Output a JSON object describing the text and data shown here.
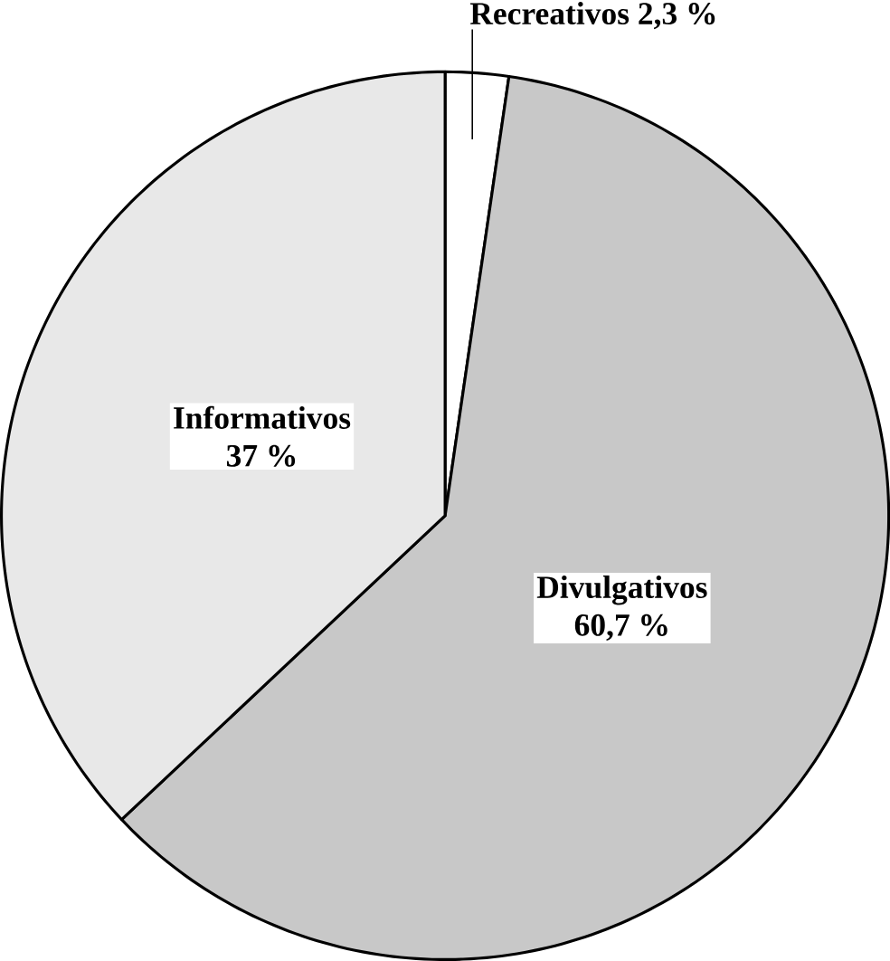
{
  "chart_data": {
    "type": "pie",
    "categories": [
      "Recreativos",
      "Divulgativos",
      "Informativos"
    ],
    "values": [
      2.3,
      60.7,
      37
    ],
    "value_labels": [
      "2,3 %",
      "60,7 %",
      "37 %"
    ],
    "colors": [
      "#ffffff",
      "#c8c8c8",
      "#e8e8e8"
    ]
  }
}
